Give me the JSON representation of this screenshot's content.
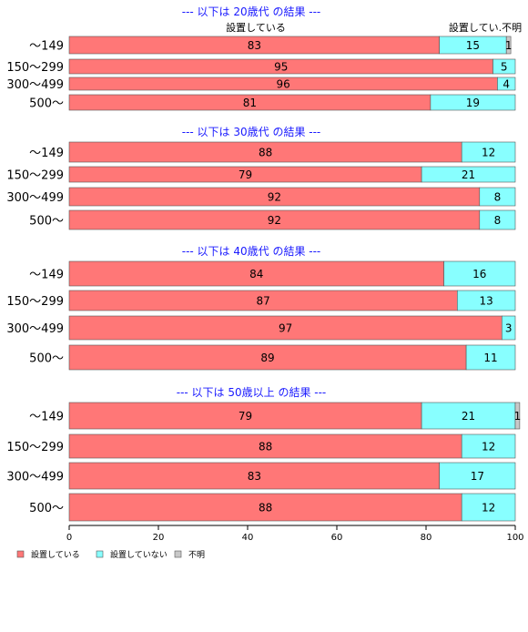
{
  "chart_data": {
    "type": "bar",
    "orientation": "horizontal",
    "stacked": true,
    "xlim": [
      0,
      100
    ],
    "x_ticks": [
      "0",
      "20",
      "40",
      "60",
      "80",
      "100"
    ],
    "column_labels": [
      "設置している",
      "設置してい.不明"
    ],
    "series": [
      {
        "name": "設置している",
        "color": "#ff7777"
      },
      {
        "name": "設置していない",
        "color": "#88ffff"
      },
      {
        "name": "不明",
        "color": "#c8c8c8"
      }
    ],
    "groups": [
      {
        "title": "--- 以下は 20歳代 の結果 ---",
        "rows": [
          {
            "category": "〜149",
            "values": [
              83,
              15,
              1
            ]
          },
          {
            "category": "150〜299",
            "values": [
              95,
              5,
              0
            ]
          },
          {
            "category": "300〜499",
            "values": [
              96,
              4,
              0
            ]
          },
          {
            "category": "500〜",
            "values": [
              81,
              19,
              0
            ]
          }
        ]
      },
      {
        "title": "--- 以下は 30歳代 の結果 ---",
        "rows": [
          {
            "category": "〜149",
            "values": [
              88,
              12,
              0
            ]
          },
          {
            "category": "150〜299",
            "values": [
              79,
              21,
              0
            ]
          },
          {
            "category": "300〜499",
            "values": [
              92,
              8,
              0
            ]
          },
          {
            "category": "500〜",
            "values": [
              92,
              8,
              0
            ]
          }
        ]
      },
      {
        "title": "--- 以下は 40歳代 の結果 ---",
        "rows": [
          {
            "category": "〜149",
            "values": [
              84,
              16,
              0
            ]
          },
          {
            "category": "150〜299",
            "values": [
              87,
              13,
              0
            ]
          },
          {
            "category": "300〜499",
            "values": [
              97,
              3,
              0
            ]
          },
          {
            "category": "500〜",
            "values": [
              89,
              11,
              0
            ]
          }
        ]
      },
      {
        "title": "--- 以下は 50歳以上 の結果 ---",
        "rows": [
          {
            "category": "〜149",
            "values": [
              79,
              21,
              1
            ]
          },
          {
            "category": "150〜299",
            "values": [
              88,
              12,
              0
            ]
          },
          {
            "category": "300〜499",
            "values": [
              83,
              17,
              0
            ]
          },
          {
            "category": "500〜",
            "values": [
              88,
              12,
              0
            ]
          }
        ]
      }
    ]
  }
}
